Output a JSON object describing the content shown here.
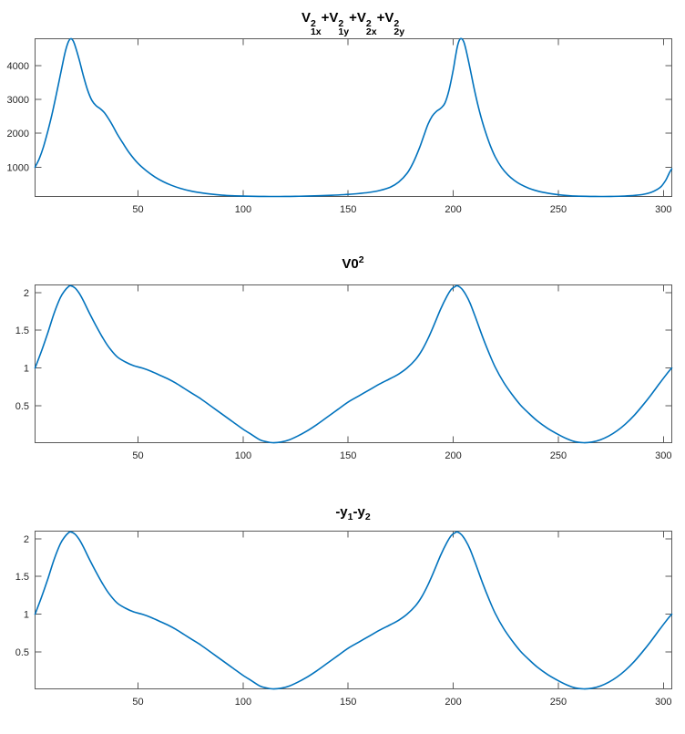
{
  "figure": {
    "background": "#ffffff",
    "line_color": "#0072BD",
    "axis_color": "#5a5a5a",
    "tick_label_color": "#262626"
  },
  "chart_data": [
    {
      "type": "line",
      "title": "V_1x^2+V_1y^2+V_2x^2+V_2y^2",
      "title_segments": [
        {
          "t": "V",
          "sup": "2",
          "sub": "1x"
        },
        {
          "t": "+"
        },
        {
          "t": "V",
          "sup": "2",
          "sub": "1y"
        },
        {
          "t": "+"
        },
        {
          "t": "V",
          "sup": "2",
          "sub": "2x"
        },
        {
          "t": "+"
        },
        {
          "t": "V",
          "sup": "2",
          "sub": "2y"
        }
      ],
      "xlabel": "",
      "ylabel": "",
      "grid": false,
      "legend_position": "none",
      "xlim": [
        1,
        304
      ],
      "ylim": [
        131,
        4800
      ],
      "xticks": [
        50,
        100,
        150,
        200,
        250,
        300
      ],
      "xtick_labels": [
        "50",
        "100",
        "150",
        "200",
        "250",
        "300"
      ],
      "yticks": [
        1000,
        2000,
        3000,
        4000
      ],
      "ytick_labels": [
        "1000",
        "2000",
        "3000",
        "4000"
      ],
      "points": [
        [
          1,
          1000
        ],
        [
          3,
          1250
        ],
        [
          5,
          1600
        ],
        [
          7,
          2050
        ],
        [
          9,
          2550
        ],
        [
          11,
          3120
        ],
        [
          13,
          3720
        ],
        [
          15,
          4320
        ],
        [
          16,
          4560
        ],
        [
          17,
          4730
        ],
        [
          18,
          4800
        ],
        [
          19,
          4750
        ],
        [
          20,
          4600
        ],
        [
          22,
          4180
        ],
        [
          24,
          3700
        ],
        [
          26,
          3280
        ],
        [
          28,
          2980
        ],
        [
          30,
          2820
        ],
        [
          32,
          2730
        ],
        [
          34,
          2610
        ],
        [
          36,
          2430
        ],
        [
          38,
          2220
        ],
        [
          40,
          1990
        ],
        [
          43,
          1690
        ],
        [
          46,
          1410
        ],
        [
          50,
          1110
        ],
        [
          54,
          890
        ],
        [
          58,
          710
        ],
        [
          62,
          570
        ],
        [
          66,
          460
        ],
        [
          70,
          375
        ],
        [
          75,
          295
        ],
        [
          80,
          240
        ],
        [
          85,
          200
        ],
        [
          90,
          170
        ],
        [
          95,
          152
        ],
        [
          100,
          142
        ],
        [
          105,
          136
        ],
        [
          110,
          132
        ],
        [
          115,
          131
        ],
        [
          120,
          132
        ],
        [
          125,
          136
        ],
        [
          130,
          142
        ],
        [
          136,
          152
        ],
        [
          142,
          166
        ],
        [
          148,
          185
        ],
        [
          154,
          212
        ],
        [
          160,
          252
        ],
        [
          165,
          310
        ],
        [
          170,
          405
        ],
        [
          174,
          555
        ],
        [
          178,
          815
        ],
        [
          181,
          1140
        ],
        [
          184,
          1580
        ],
        [
          186,
          1930
        ],
        [
          188,
          2270
        ],
        [
          190,
          2510
        ],
        [
          192,
          2650
        ],
        [
          194,
          2740
        ],
        [
          196,
          2890
        ],
        [
          198,
          3280
        ],
        [
          200,
          3880
        ],
        [
          201,
          4250
        ],
        [
          202,
          4580
        ],
        [
          203,
          4770
        ],
        [
          204,
          4800
        ],
        [
          205,
          4710
        ],
        [
          206,
          4490
        ],
        [
          208,
          3920
        ],
        [
          210,
          3310
        ],
        [
          212,
          2770
        ],
        [
          214,
          2310
        ],
        [
          216,
          1920
        ],
        [
          218,
          1580
        ],
        [
          220,
          1300
        ],
        [
          223,
          990
        ],
        [
          226,
          770
        ],
        [
          229,
          610
        ],
        [
          232,
          490
        ],
        [
          236,
          375
        ],
        [
          240,
          295
        ],
        [
          244,
          240
        ],
        [
          248,
          200
        ],
        [
          252,
          170
        ],
        [
          256,
          150
        ],
        [
          260,
          140
        ],
        [
          265,
          133
        ],
        [
          270,
          131
        ],
        [
          275,
          133
        ],
        [
          280,
          141
        ],
        [
          285,
          157
        ],
        [
          290,
          188
        ],
        [
          294,
          248
        ],
        [
          297,
          338
        ],
        [
          299,
          430
        ],
        [
          301,
          600
        ],
        [
          302,
          720
        ],
        [
          303,
          850
        ],
        [
          304,
          950
        ]
      ]
    },
    {
      "type": "line",
      "title": "V0^2",
      "title_segments": [
        {
          "t": "V0",
          "sup": "2"
        }
      ],
      "xlabel": "",
      "ylabel": "",
      "grid": false,
      "legend_position": "none",
      "xlim": [
        1,
        304
      ],
      "ylim": [
        0.012,
        2.1
      ],
      "xticks": [
        50,
        100,
        150,
        200,
        250,
        300
      ],
      "xtick_labels": [
        "50",
        "100",
        "150",
        "200",
        "250",
        "300"
      ],
      "yticks": [
        0.5,
        1,
        1.5,
        2
      ],
      "ytick_labels": [
        "0.5",
        "1",
        "1.5",
        "2"
      ],
      "points": [
        [
          1,
          1.0
        ],
        [
          4,
          1.22
        ],
        [
          7,
          1.46
        ],
        [
          10,
          1.72
        ],
        [
          13,
          1.93
        ],
        [
          15,
          2.02
        ],
        [
          17,
          2.08
        ],
        [
          18,
          2.09
        ],
        [
          20,
          2.06
        ],
        [
          22,
          1.99
        ],
        [
          24,
          1.89
        ],
        [
          27,
          1.72
        ],
        [
          30,
          1.56
        ],
        [
          33,
          1.41
        ],
        [
          36,
          1.28
        ],
        [
          40,
          1.15
        ],
        [
          44,
          1.08
        ],
        [
          48,
          1.03
        ],
        [
          52,
          1.0
        ],
        [
          56,
          0.96
        ],
        [
          60,
          0.91
        ],
        [
          64,
          0.86
        ],
        [
          68,
          0.8
        ],
        [
          72,
          0.73
        ],
        [
          76,
          0.66
        ],
        [
          80,
          0.59
        ],
        [
          85,
          0.49
        ],
        [
          90,
          0.39
        ],
        [
          95,
          0.29
        ],
        [
          100,
          0.19
        ],
        [
          104,
          0.12
        ],
        [
          108,
          0.05
        ],
        [
          111,
          0.025
        ],
        [
          114,
          0.012
        ],
        [
          118,
          0.02
        ],
        [
          122,
          0.05
        ],
        [
          126,
          0.1
        ],
        [
          130,
          0.16
        ],
        [
          135,
          0.25
        ],
        [
          140,
          0.35
        ],
        [
          145,
          0.45
        ],
        [
          150,
          0.55
        ],
        [
          155,
          0.63
        ],
        [
          160,
          0.71
        ],
        [
          165,
          0.79
        ],
        [
          170,
          0.86
        ],
        [
          174,
          0.92
        ],
        [
          178,
          1.0
        ],
        [
          182,
          1.11
        ],
        [
          185,
          1.23
        ],
        [
          188,
          1.39
        ],
        [
          191,
          1.58
        ],
        [
          194,
          1.78
        ],
        [
          197,
          1.95
        ],
        [
          199,
          2.04
        ],
        [
          201,
          2.08
        ],
        [
          202,
          2.09
        ],
        [
          204,
          2.05
        ],
        [
          206,
          1.97
        ],
        [
          208,
          1.86
        ],
        [
          211,
          1.64
        ],
        [
          214,
          1.41
        ],
        [
          217,
          1.2
        ],
        [
          220,
          1.01
        ],
        [
          224,
          0.81
        ],
        [
          228,
          0.65
        ],
        [
          232,
          0.51
        ],
        [
          236,
          0.4
        ],
        [
          240,
          0.3
        ],
        [
          245,
          0.2
        ],
        [
          250,
          0.12
        ],
        [
          254,
          0.065
        ],
        [
          258,
          0.025
        ],
        [
          262,
          0.012
        ],
        [
          266,
          0.02
        ],
        [
          270,
          0.05
        ],
        [
          274,
          0.1
        ],
        [
          278,
          0.17
        ],
        [
          282,
          0.26
        ],
        [
          286,
          0.37
        ],
        [
          290,
          0.5
        ],
        [
          294,
          0.64
        ],
        [
          298,
          0.79
        ],
        [
          301,
          0.9
        ],
        [
          303,
          0.97
        ],
        [
          304,
          1.0
        ]
      ]
    },
    {
      "type": "line",
      "title": "-y_1-y_2",
      "title_segments": [
        {
          "t": "-y",
          "sub": "1"
        },
        {
          "t": "-y",
          "sub": "2"
        }
      ],
      "xlabel": "",
      "ylabel": "",
      "grid": false,
      "legend_position": "none",
      "xlim": [
        1,
        304
      ],
      "ylim": [
        0.012,
        2.1
      ],
      "xticks": [
        50,
        100,
        150,
        200,
        250,
        300
      ],
      "xtick_labels": [
        "50",
        "100",
        "150",
        "200",
        "250",
        "300"
      ],
      "yticks": [
        0.5,
        1,
        1.5,
        2
      ],
      "ytick_labels": [
        "0.5",
        "1",
        "1.5",
        "2"
      ],
      "points": [
        [
          1,
          1.0
        ],
        [
          4,
          1.22
        ],
        [
          7,
          1.46
        ],
        [
          10,
          1.72
        ],
        [
          13,
          1.93
        ],
        [
          15,
          2.02
        ],
        [
          17,
          2.08
        ],
        [
          18,
          2.09
        ],
        [
          20,
          2.06
        ],
        [
          22,
          1.99
        ],
        [
          24,
          1.89
        ],
        [
          27,
          1.72
        ],
        [
          30,
          1.56
        ],
        [
          33,
          1.41
        ],
        [
          36,
          1.28
        ],
        [
          40,
          1.15
        ],
        [
          44,
          1.08
        ],
        [
          48,
          1.03
        ],
        [
          52,
          1.0
        ],
        [
          56,
          0.96
        ],
        [
          60,
          0.91
        ],
        [
          64,
          0.86
        ],
        [
          68,
          0.8
        ],
        [
          72,
          0.73
        ],
        [
          76,
          0.66
        ],
        [
          80,
          0.59
        ],
        [
          85,
          0.49
        ],
        [
          90,
          0.39
        ],
        [
          95,
          0.29
        ],
        [
          100,
          0.19
        ],
        [
          104,
          0.12
        ],
        [
          108,
          0.05
        ],
        [
          111,
          0.025
        ],
        [
          114,
          0.012
        ],
        [
          118,
          0.02
        ],
        [
          122,
          0.05
        ],
        [
          126,
          0.1
        ],
        [
          130,
          0.16
        ],
        [
          135,
          0.25
        ],
        [
          140,
          0.35
        ],
        [
          145,
          0.45
        ],
        [
          150,
          0.55
        ],
        [
          155,
          0.63
        ],
        [
          160,
          0.71
        ],
        [
          165,
          0.79
        ],
        [
          170,
          0.86
        ],
        [
          174,
          0.92
        ],
        [
          178,
          1.0
        ],
        [
          182,
          1.11
        ],
        [
          185,
          1.23
        ],
        [
          188,
          1.39
        ],
        [
          191,
          1.58
        ],
        [
          194,
          1.78
        ],
        [
          197,
          1.95
        ],
        [
          199,
          2.04
        ],
        [
          201,
          2.08
        ],
        [
          202,
          2.09
        ],
        [
          204,
          2.05
        ],
        [
          206,
          1.97
        ],
        [
          208,
          1.86
        ],
        [
          211,
          1.64
        ],
        [
          214,
          1.41
        ],
        [
          217,
          1.2
        ],
        [
          220,
          1.01
        ],
        [
          224,
          0.81
        ],
        [
          228,
          0.65
        ],
        [
          232,
          0.51
        ],
        [
          236,
          0.4
        ],
        [
          240,
          0.3
        ],
        [
          245,
          0.2
        ],
        [
          250,
          0.12
        ],
        [
          254,
          0.065
        ],
        [
          258,
          0.025
        ],
        [
          262,
          0.012
        ],
        [
          266,
          0.02
        ],
        [
          270,
          0.05
        ],
        [
          274,
          0.1
        ],
        [
          278,
          0.17
        ],
        [
          282,
          0.26
        ],
        [
          286,
          0.37
        ],
        [
          290,
          0.5
        ],
        [
          294,
          0.64
        ],
        [
          298,
          0.79
        ],
        [
          301,
          0.9
        ],
        [
          303,
          0.97
        ],
        [
          304,
          1.0
        ]
      ]
    }
  ]
}
